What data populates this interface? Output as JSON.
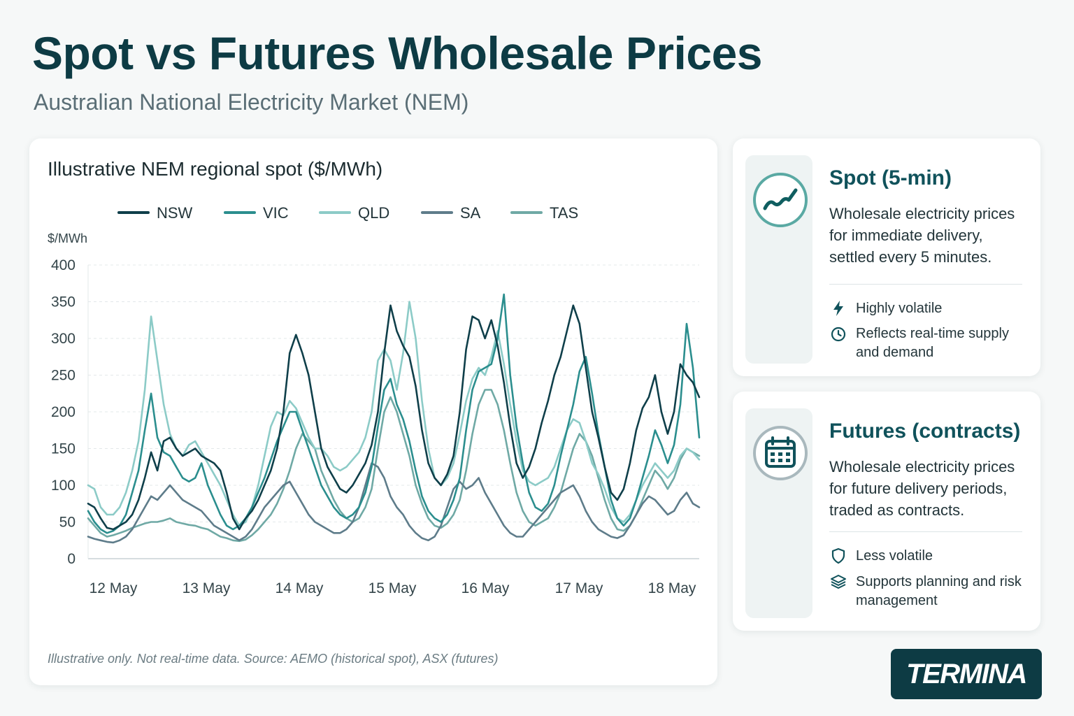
{
  "header": {
    "title": "Spot vs Futures Wholesale Prices",
    "subtitle": "Australian National Electricity Market (NEM)"
  },
  "chart_data": {
    "type": "line",
    "title": "Illustrative NEM regional spot ($/MWh)",
    "ylabel": "$/MWh",
    "xlabel": "",
    "ylim": [
      0,
      400
    ],
    "yticks": [
      0,
      50,
      100,
      150,
      200,
      250,
      300,
      350,
      400
    ],
    "x_start": "12 May",
    "xticks": [
      "12 May",
      "13 May",
      "14 May",
      "15 May",
      "16 May",
      "17 May",
      "18 May"
    ],
    "grid": true,
    "legend_position": "top",
    "series": [
      {
        "name": "NSW",
        "color": "#0f3f4a",
        "values": [
          75,
          70,
          55,
          42,
          40,
          45,
          50,
          60,
          80,
          110,
          145,
          120,
          160,
          165,
          150,
          140,
          145,
          150,
          140,
          135,
          130,
          120,
          90,
          55,
          40,
          55,
          65,
          80,
          100,
          120,
          150,
          200,
          280,
          305,
          280,
          250,
          200,
          150,
          125,
          110,
          95,
          90,
          100,
          115,
          130,
          155,
          200,
          280,
          345,
          310,
          290,
          275,
          235,
          175,
          130,
          110,
          100,
          115,
          140,
          200,
          285,
          330,
          325,
          300,
          325,
          290,
          240,
          180,
          130,
          110,
          125,
          150,
          185,
          215,
          250,
          275,
          310,
          345,
          320,
          260,
          200,
          165,
          125,
          90,
          80,
          95,
          130,
          175,
          205,
          220,
          250,
          200,
          170,
          200,
          265,
          250,
          240,
          220
        ]
      },
      {
        "name": "VIC",
        "color": "#2b8e8e",
        "values": [
          65,
          50,
          40,
          35,
          38,
          45,
          60,
          90,
          120,
          175,
          225,
          165,
          145,
          140,
          125,
          110,
          105,
          110,
          130,
          100,
          80,
          60,
          45,
          40,
          45,
          55,
          70,
          90,
          110,
          135,
          160,
          180,
          200,
          200,
          175,
          150,
          125,
          100,
          85,
          70,
          60,
          55,
          60,
          70,
          90,
          125,
          180,
          230,
          245,
          210,
          190,
          160,
          120,
          85,
          65,
          55,
          50,
          60,
          80,
          110,
          175,
          230,
          255,
          260,
          265,
          300,
          360,
          250,
          180,
          130,
          90,
          70,
          65,
          75,
          100,
          140,
          175,
          210,
          255,
          275,
          225,
          170,
          125,
          80,
          55,
          45,
          55,
          80,
          110,
          140,
          175,
          155,
          130,
          155,
          210,
          320,
          260,
          165
        ]
      },
      {
        "name": "QLD",
        "color": "#8ccbc7",
        "values": [
          100,
          95,
          70,
          60,
          60,
          70,
          90,
          120,
          160,
          230,
          330,
          270,
          210,
          170,
          150,
          140,
          155,
          160,
          145,
          130,
          115,
          100,
          80,
          60,
          45,
          50,
          70,
          100,
          140,
          180,
          200,
          195,
          215,
          205,
          185,
          165,
          150,
          150,
          140,
          125,
          120,
          125,
          135,
          145,
          165,
          200,
          270,
          285,
          270,
          230,
          280,
          350,
          300,
          215,
          150,
          110,
          100,
          110,
          130,
          170,
          215,
          245,
          260,
          250,
          275,
          310,
          265,
          210,
          160,
          120,
          105,
          100,
          105,
          110,
          125,
          150,
          175,
          190,
          185,
          160,
          130,
          115,
          95,
          70,
          55,
          50,
          60,
          80,
          100,
          115,
          130,
          120,
          110,
          120,
          140,
          150,
          145,
          135
        ]
      },
      {
        "name": "SA",
        "color": "#5e7c8a",
        "values": [
          30,
          27,
          25,
          23,
          22,
          25,
          30,
          40,
          55,
          70,
          85,
          80,
          90,
          100,
          90,
          80,
          75,
          70,
          65,
          55,
          45,
          40,
          35,
          30,
          25,
          30,
          40,
          55,
          70,
          80,
          90,
          100,
          105,
          90,
          75,
          60,
          50,
          45,
          40,
          35,
          35,
          40,
          50,
          70,
          100,
          130,
          125,
          110,
          85,
          70,
          60,
          45,
          35,
          28,
          25,
          30,
          45,
          70,
          95,
          105,
          95,
          100,
          110,
          90,
          75,
          60,
          45,
          35,
          30,
          30,
          40,
          50,
          60,
          70,
          80,
          90,
          95,
          100,
          85,
          65,
          50,
          40,
          35,
          30,
          28,
          32,
          45,
          60,
          75,
          85,
          80,
          70,
          60,
          65,
          80,
          90,
          75,
          70
        ]
      },
      {
        "name": "TAS",
        "color": "#6fa9a5",
        "values": [
          55,
          45,
          35,
          30,
          32,
          35,
          38,
          42,
          45,
          48,
          50,
          50,
          52,
          55,
          50,
          48,
          46,
          45,
          42,
          40,
          35,
          30,
          28,
          25,
          24,
          26,
          32,
          40,
          50,
          60,
          75,
          95,
          120,
          150,
          170,
          160,
          150,
          120,
          100,
          80,
          65,
          55,
          50,
          55,
          70,
          95,
          150,
          200,
          220,
          200,
          170,
          140,
          100,
          75,
          55,
          45,
          42,
          48,
          60,
          80,
          120,
          170,
          210,
          230,
          230,
          210,
          175,
          130,
          90,
          65,
          50,
          45,
          50,
          55,
          70,
          90,
          120,
          150,
          170,
          160,
          140,
          110,
          80,
          55,
          40,
          38,
          45,
          60,
          80,
          100,
          120,
          110,
          95,
          110,
          135,
          150,
          145,
          140
        ]
      }
    ]
  },
  "source_note": "Illustrative only. Not real-time data. Source: AEMO (historical spot), ASX (futures)",
  "spot": {
    "icon": "trend-line-icon",
    "heading": "Spot (5-min)",
    "description": "Wholesale electricity prices for immediate delivery, settled every 5 minutes.",
    "bullets": [
      {
        "icon": "lightning-icon",
        "text": "Highly volatile"
      },
      {
        "icon": "clock-icon",
        "text": "Reflects real-time supply and demand"
      }
    ]
  },
  "futures": {
    "icon": "calendar-icon",
    "heading": "Futures (contracts)",
    "description": "Wholesale electricity prices for future delivery periods, traded as contracts.",
    "bullets": [
      {
        "icon": "shield-icon",
        "text": "Less volatile"
      },
      {
        "icon": "layers-icon",
        "text": "Supports planning and risk management"
      }
    ]
  },
  "logo": {
    "text": "TERMINA"
  }
}
